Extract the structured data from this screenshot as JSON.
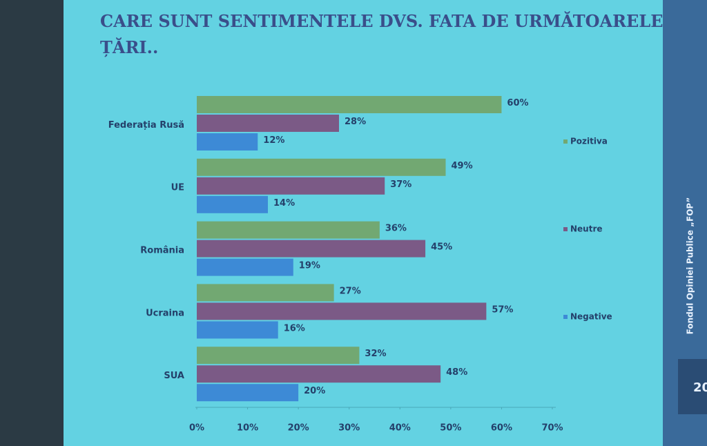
{
  "chart_data": {
    "type": "bar",
    "orientation": "horizontal",
    "title": "CARE SUNT SENTIMENTELE DVS. FATA DE URMĂTOARELE ȚĂRI..",
    "categories": [
      "Federația Rusă",
      "UE",
      "România",
      "Ucraina",
      "SUA"
    ],
    "series": [
      {
        "name": "Pozitiva",
        "color": "#72a872",
        "values": [
          60,
          49,
          36,
          27,
          32
        ],
        "value_labels": [
          "60%",
          "49%",
          "36%",
          "27%",
          "32%"
        ]
      },
      {
        "name": "Neutre",
        "color": "#7b5a86",
        "values": [
          28,
          37,
          45,
          57,
          48
        ],
        "value_labels": [
          "28%",
          "37%",
          "45%",
          "57%",
          "48%"
        ]
      },
      {
        "name": "Negative",
        "color": "#3d8ad6",
        "values": [
          12,
          14,
          19,
          16,
          20
        ],
        "value_labels": [
          "12%",
          "14%",
          "19%",
          "16%",
          "20%"
        ]
      }
    ],
    "xlim": [
      0,
      70
    ],
    "xticks": [
      {
        "value": 0,
        "label": "0%"
      },
      {
        "value": 10,
        "label": "10%"
      },
      {
        "value": 20,
        "label": "20%"
      },
      {
        "value": 30,
        "label": "30%"
      },
      {
        "value": 40,
        "label": "40%"
      },
      {
        "value": 50,
        "label": "50%"
      },
      {
        "value": 60,
        "label": "60%"
      },
      {
        "value": 70,
        "label": "70%"
      }
    ],
    "legend": "right"
  },
  "sidebar": {
    "text": "Fondul Opiniei Publice „FOP”",
    "page": "20"
  }
}
